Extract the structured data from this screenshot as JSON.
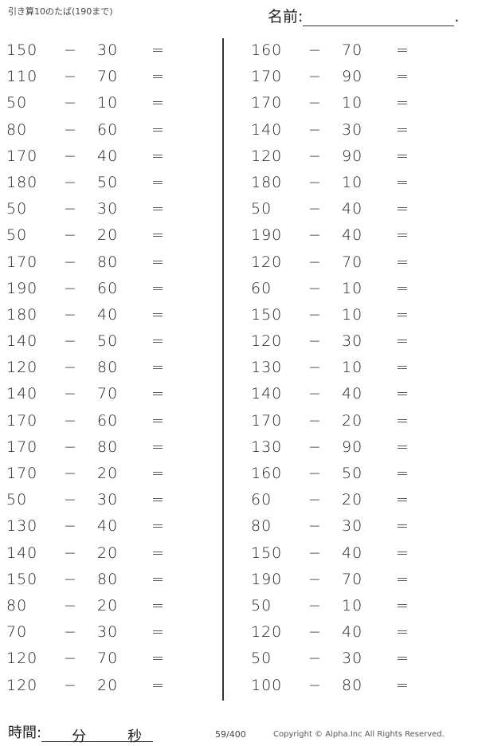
{
  "header": {
    "title": "引き算10のたば(190まで)",
    "name_label": "名前:",
    "name_end": "."
  },
  "operator": "−",
  "equals": "=",
  "left": [
    [
      "150",
      "30"
    ],
    [
      "110",
      "70"
    ],
    [
      "50",
      "10"
    ],
    [
      "80",
      "60"
    ],
    [
      "170",
      "40"
    ],
    [
      "180",
      "50"
    ],
    [
      "50",
      "30"
    ],
    [
      "50",
      "20"
    ],
    [
      "170",
      "80"
    ],
    [
      "190",
      "60"
    ],
    [
      "180",
      "40"
    ],
    [
      "140",
      "50"
    ],
    [
      "120",
      "80"
    ],
    [
      "140",
      "70"
    ],
    [
      "170",
      "60"
    ],
    [
      "170",
      "80"
    ],
    [
      "170",
      "20"
    ],
    [
      "50",
      "30"
    ],
    [
      "130",
      "40"
    ],
    [
      "140",
      "20"
    ],
    [
      "150",
      "80"
    ],
    [
      "80",
      "20"
    ],
    [
      "70",
      "30"
    ],
    [
      "120",
      "70"
    ],
    [
      "120",
      "20"
    ]
  ],
  "right": [
    [
      "160",
      "70"
    ],
    [
      "170",
      "90"
    ],
    [
      "170",
      "10"
    ],
    [
      "140",
      "30"
    ],
    [
      "120",
      "90"
    ],
    [
      "180",
      "10"
    ],
    [
      "50",
      "40"
    ],
    [
      "190",
      "40"
    ],
    [
      "120",
      "70"
    ],
    [
      "60",
      "10"
    ],
    [
      "150",
      "10"
    ],
    [
      "120",
      "30"
    ],
    [
      "130",
      "10"
    ],
    [
      "140",
      "40"
    ],
    [
      "170",
      "20"
    ],
    [
      "130",
      "90"
    ],
    [
      "160",
      "50"
    ],
    [
      "60",
      "20"
    ],
    [
      "80",
      "30"
    ],
    [
      "150",
      "40"
    ],
    [
      "190",
      "70"
    ],
    [
      "50",
      "10"
    ],
    [
      "120",
      "40"
    ],
    [
      "50",
      "30"
    ],
    [
      "100",
      "80"
    ]
  ],
  "footer": {
    "time_label": "時間:",
    "minutes": "分",
    "seconds": "秒",
    "page": "59/400",
    "copyright": "Copyright ©  Alpha.Inc All Rights Reserved."
  }
}
